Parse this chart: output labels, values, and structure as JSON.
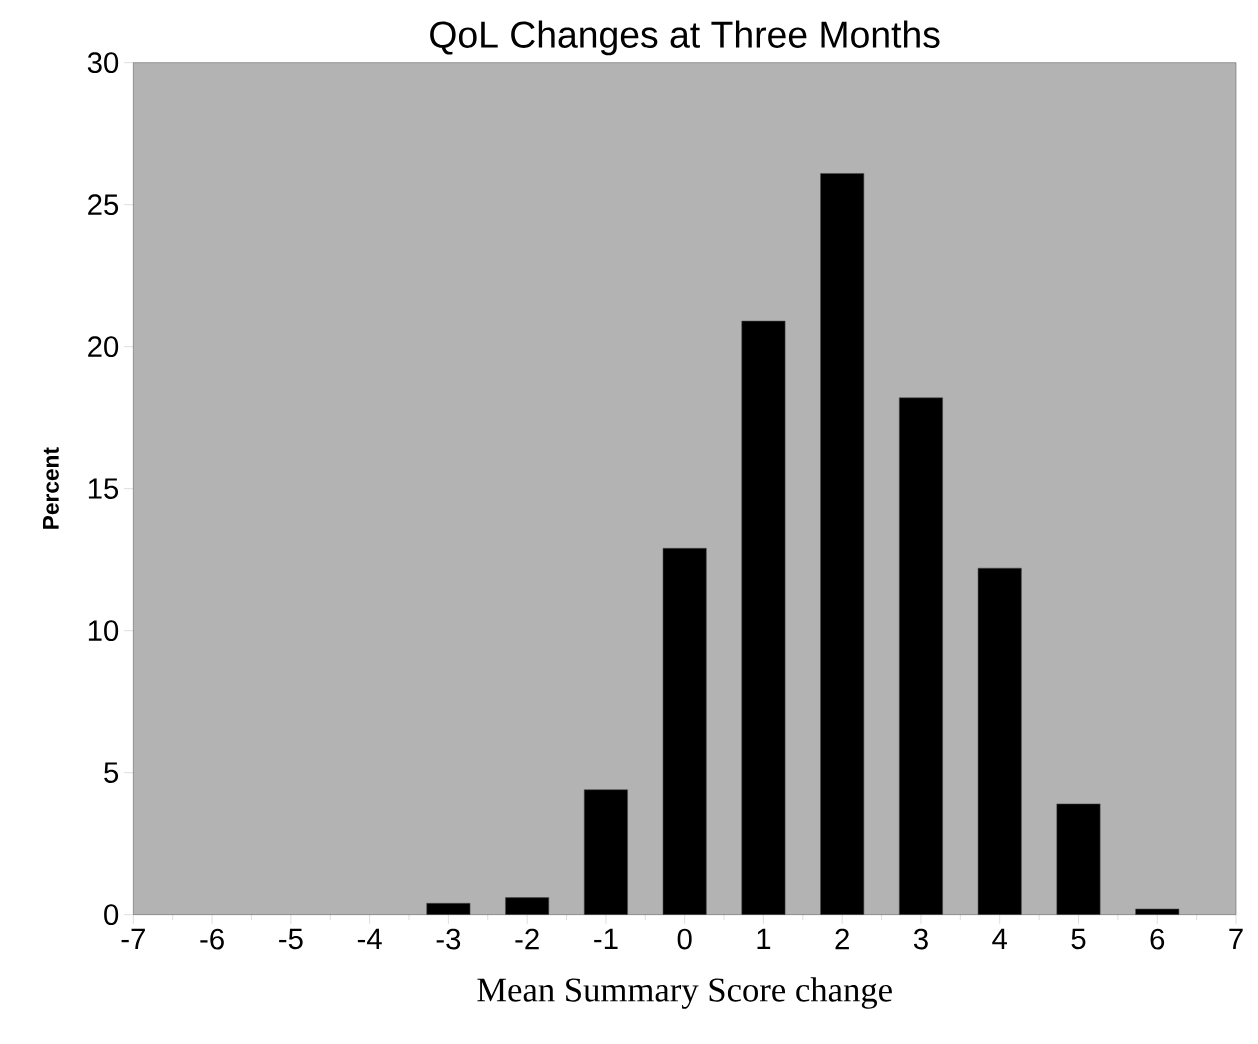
{
  "chart_data": {
    "type": "bar",
    "title": "QoL Changes at Three Months",
    "xlabel": "Mean Summary Score change",
    "ylabel": "Percent",
    "x": [
      -3,
      -2,
      -1,
      0,
      1,
      2,
      3,
      4,
      5,
      6
    ],
    "values": [
      0.4,
      0.6,
      4.4,
      12.9,
      20.9,
      26.1,
      18.2,
      12.2,
      3.9,
      0.2
    ],
    "color": "#000000",
    "xlim": [
      -7,
      7
    ],
    "xticks": [
      -7,
      -6,
      -5,
      -4,
      -3,
      -2,
      -1,
      0,
      1,
      2,
      3,
      4,
      5,
      6,
      7
    ],
    "ylim": [
      0,
      30
    ],
    "yticks": [
      0,
      5,
      10,
      15,
      20,
      25,
      30
    ],
    "grid": false
  }
}
